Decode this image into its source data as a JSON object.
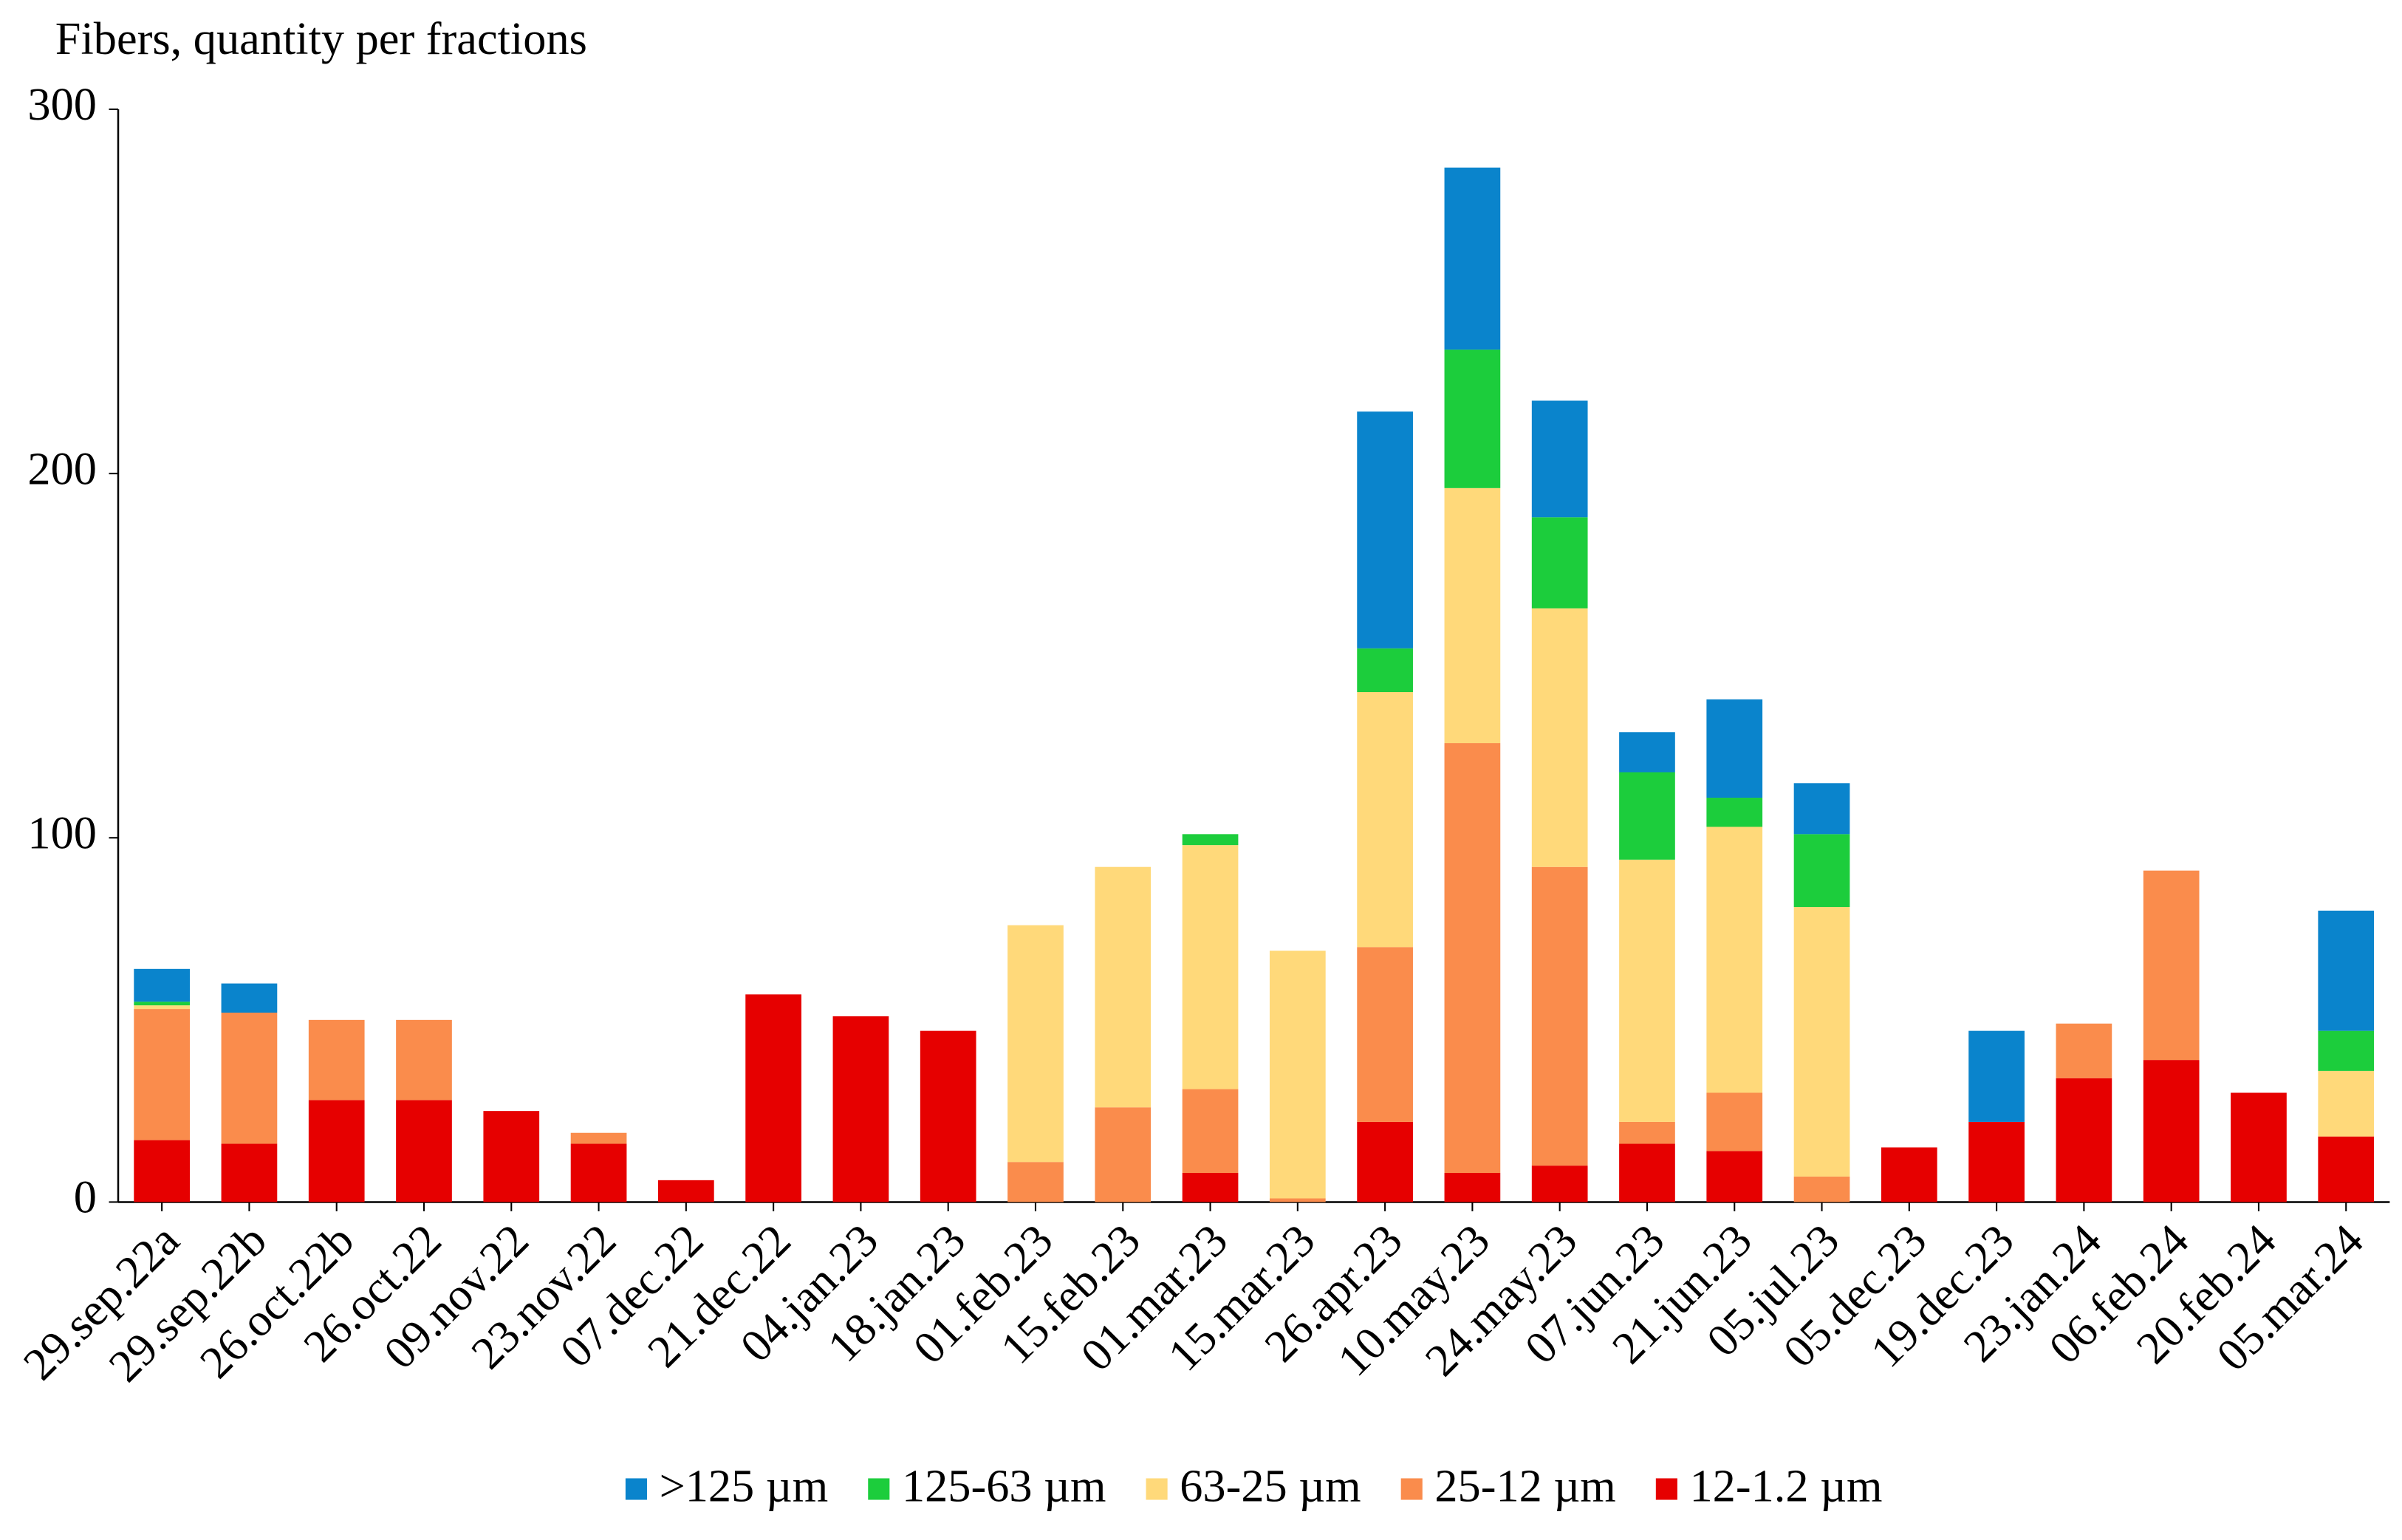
{
  "chart_data": {
    "type": "stacked-bar",
    "title": "Fibers, quantity per fractions",
    "categories": [
      "29.sep.22a",
      "29.sep.22b",
      "26.oct.22b",
      "26.oct.22",
      "09.nov.22",
      "23.nov.22",
      "07.dec.22",
      "21.dec.22",
      "04.jan.23",
      "18.jan.23",
      "01.feb.23",
      "15.feb.23",
      "01.mar.23",
      "15.mar.23",
      "26.apr.23",
      "10.may.23",
      "24.may.23",
      "07.jun.23",
      "21.jun.23",
      "05.jul.23",
      "05.dec.23",
      "19.dec.23",
      "23.jan.24",
      "06.feb.24",
      "20.feb.24",
      "05.mar.24"
    ],
    "series": [
      {
        "name": ">125 µm",
        "color": "#0a84cc",
        "values": [
          9,
          8,
          0,
          0,
          0,
          0,
          0,
          0,
          0,
          0,
          0,
          0,
          0,
          0,
          65,
          50,
          32,
          11,
          27,
          14,
          0,
          25,
          0,
          0,
          0,
          33
        ]
      },
      {
        "name": "125-63 µm",
        "color": "#1ccd3c",
        "values": [
          1,
          0,
          0,
          0,
          0,
          0,
          0,
          0,
          0,
          0,
          0,
          0,
          3,
          0,
          12,
          38,
          25,
          24,
          8,
          20,
          0,
          0,
          0,
          0,
          0,
          11
        ]
      },
      {
        "name": "63-25 µm",
        "color": "#ffd97a",
        "values": [
          1,
          0,
          0,
          0,
          0,
          0,
          0,
          0,
          0,
          0,
          65,
          66,
          67,
          68,
          70,
          70,
          71,
          72,
          73,
          74,
          0,
          0,
          0,
          0,
          0,
          18
        ]
      },
      {
        "name": "25-12 µm",
        "color": "#fa8c4c",
        "values": [
          36,
          36,
          22,
          22,
          0,
          3,
          0,
          0,
          0,
          0,
          11,
          26,
          23,
          1,
          48,
          118,
          82,
          6,
          16,
          7,
          0,
          0,
          15,
          52,
          0,
          0
        ]
      },
      {
        "name": "12-1.2 µm",
        "color": "#e60000",
        "values": [
          17,
          16,
          28,
          28,
          25,
          16,
          6,
          57,
          51,
          47,
          0,
          0,
          8,
          0,
          22,
          8,
          10,
          16,
          14,
          0,
          15,
          22,
          34,
          39,
          30,
          18
        ]
      }
    ],
    "ylim": [
      0,
      300
    ],
    "yticks": [
      0,
      100,
      200,
      300
    ],
    "legend": "bottom"
  }
}
